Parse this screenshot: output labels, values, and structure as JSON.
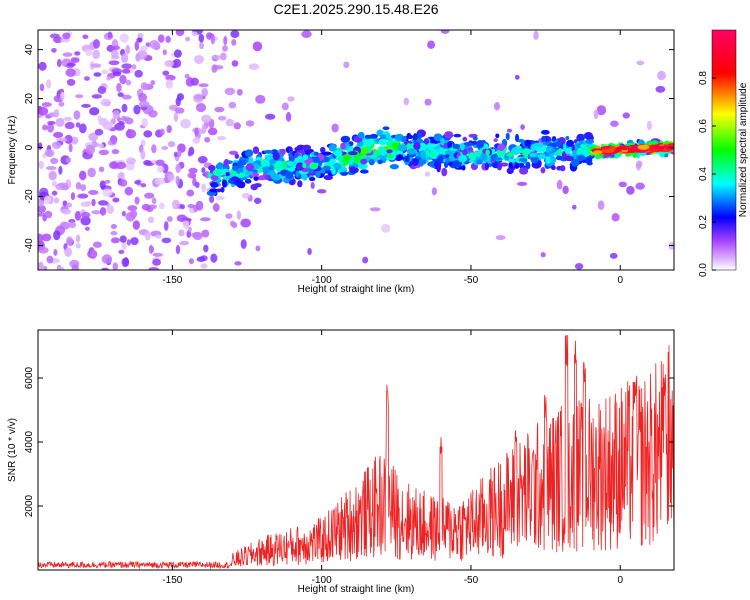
{
  "title": "C2E1.2025.290.15.48.E26",
  "chart_data": [
    {
      "type": "heatmap",
      "xlabel": "Height of straight line (km)",
      "ylabel": "Frequency (Hz)",
      "xlim": [
        -195,
        18
      ],
      "ylim": [
        -50,
        48
      ],
      "xticks": [
        -150,
        -100,
        -50,
        0
      ],
      "yticks": [
        -40,
        -20,
        0,
        20,
        40
      ],
      "xtick_labels": [
        "-150",
        "-100",
        "-50",
        "0"
      ],
      "ytick_labels": [
        "-40",
        "-20",
        "0",
        "20",
        "40"
      ],
      "colorbar": {
        "label": "Normalized spectral amplitude",
        "range": [
          0,
          1
        ],
        "ticks": [
          0.0,
          0.2,
          0.4,
          0.6,
          0.8
        ],
        "tick_labels": [
          "0.0",
          "0.2",
          "0.4",
          "0.6",
          "0.8"
        ],
        "colormap": [
          "#ffffff",
          "#cc66ff",
          "#7700ff",
          "#0000ff",
          "#00ffff",
          "#00ff00",
          "#ffff00",
          "#ff0000",
          "#ff0066"
        ]
      },
      "ridge": {
        "description_points": [
          [
            -135,
            -12
          ],
          [
            -120,
            -8
          ],
          [
            -100,
            -7
          ],
          [
            -80,
            0
          ],
          [
            -60,
            -2
          ],
          [
            -40,
            -3
          ],
          [
            -20,
            -2
          ],
          [
            0,
            -1
          ],
          [
            15,
            0
          ]
        ],
        "peak_amplitude": 0.95
      }
    },
    {
      "type": "line",
      "xlabel": "Height of straight line (km)",
      "ylabel": "SNR (10 * v/v)",
      "xlim": [
        -195,
        18
      ],
      "ylim": [
        0,
        7500
      ],
      "xticks": [
        -150,
        -100,
        -50,
        0
      ],
      "yticks": [
        2000,
        4000,
        6000
      ],
      "xtick_labels": [
        "-150",
        "-100",
        "-50",
        "0"
      ],
      "ytick_labels": [
        "2000",
        "4000",
        "6000"
      ],
      "line_color": "#ee2222",
      "envelope": [
        {
          "x": -195,
          "y": 150
        },
        {
          "x": -160,
          "y": 180
        },
        {
          "x": -140,
          "y": 220
        },
        {
          "x": -130,
          "y": 350
        },
        {
          "x": -120,
          "y": 700
        },
        {
          "x": -110,
          "y": 900
        },
        {
          "x": -100,
          "y": 1100
        },
        {
          "x": -90,
          "y": 1800
        },
        {
          "x": -80,
          "y": 2500
        },
        {
          "x": -70,
          "y": 1800
        },
        {
          "x": -60,
          "y": 1500
        },
        {
          "x": -50,
          "y": 1700
        },
        {
          "x": -40,
          "y": 2400
        },
        {
          "x": -30,
          "y": 3000
        },
        {
          "x": -20,
          "y": 3500
        },
        {
          "x": -10,
          "y": 3700
        },
        {
          "x": 0,
          "y": 3900
        },
        {
          "x": 10,
          "y": 4200
        },
        {
          "x": 18,
          "y": 4900
        }
      ],
      "spikes": [
        {
          "x": -78,
          "y": 5900
        },
        {
          "x": -60,
          "y": 4200
        },
        {
          "x": -35,
          "y": 4500
        },
        {
          "x": -25,
          "y": 5500
        },
        {
          "x": -18,
          "y": 7400
        },
        {
          "x": -15,
          "y": 7300
        },
        {
          "x": -12,
          "y": 6500
        },
        {
          "x": 5,
          "y": 6000
        },
        {
          "x": 15,
          "y": 6200
        }
      ]
    }
  ]
}
